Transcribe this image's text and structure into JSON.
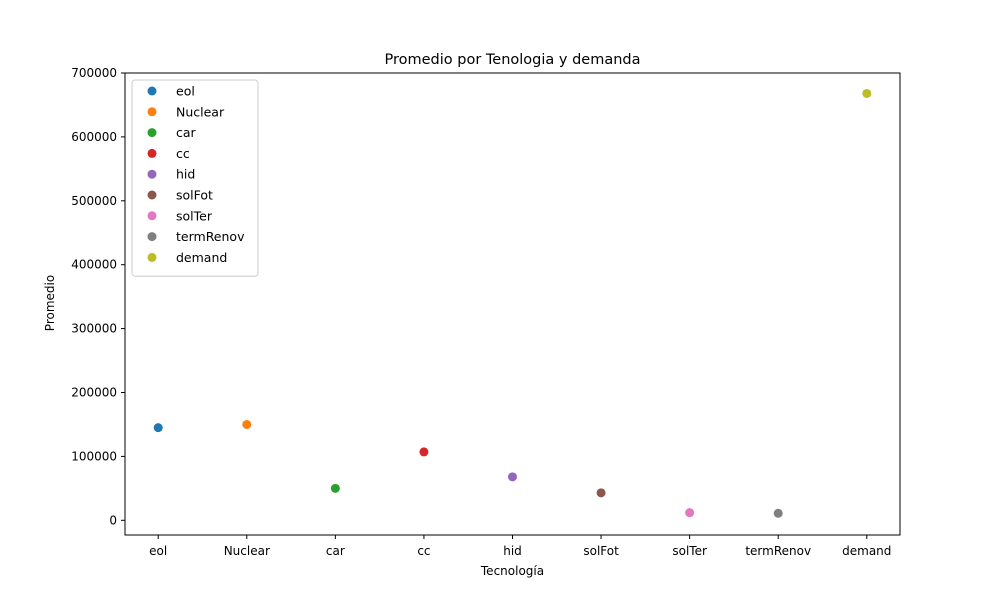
{
  "chart_data": {
    "type": "scatter",
    "title": "Promedio por Tenologia y demanda",
    "xlabel": "Tecnología",
    "ylabel": "Promedio",
    "categories": [
      "eol",
      "Nuclear",
      "car",
      "cc",
      "hid",
      "solFot",
      "solTer",
      "termRenov",
      "demand"
    ],
    "ylim": [
      -23000,
      700000
    ],
    "yticks": [
      0,
      100000,
      200000,
      300000,
      400000,
      500000,
      600000,
      700000
    ],
    "ytick_labels": [
      "0",
      "100000",
      "200000",
      "300000",
      "400000",
      "500000",
      "600000",
      "700000"
    ],
    "grid": false,
    "legend_position": "top-left",
    "series": [
      {
        "name": "eol",
        "x": "eol",
        "y": 145000,
        "color": "#1f77b4"
      },
      {
        "name": "Nuclear",
        "x": "Nuclear",
        "y": 150000,
        "color": "#ff7f0e"
      },
      {
        "name": "car",
        "x": "car",
        "y": 50000,
        "color": "#2ca02c"
      },
      {
        "name": "cc",
        "x": "cc",
        "y": 107000,
        "color": "#d62728"
      },
      {
        "name": "hid",
        "x": "hid",
        "y": 68000,
        "color": "#9467bd"
      },
      {
        "name": "solFot",
        "x": "solFot",
        "y": 43000,
        "color": "#8c564b"
      },
      {
        "name": "solTer",
        "x": "solTer",
        "y": 12000,
        "color": "#e377c2"
      },
      {
        "name": "termRenov",
        "x": "termRenov",
        "y": 11000,
        "color": "#7f7f7f"
      },
      {
        "name": "demand",
        "x": "demand",
        "y": 668000,
        "color": "#bcbd22"
      }
    ]
  }
}
